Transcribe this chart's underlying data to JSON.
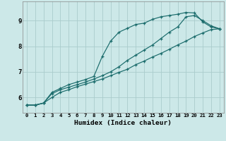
{
  "xlabel": "Humidex (Indice chaleur)",
  "background_color": "#cce8e8",
  "grid_color": "#aacccc",
  "line_color": "#1a6b6b",
  "xlim": [
    -0.5,
    23.5
  ],
  "ylim": [
    5.4,
    9.75
  ],
  "xticks": [
    0,
    1,
    2,
    3,
    4,
    5,
    6,
    7,
    8,
    9,
    10,
    11,
    12,
    13,
    14,
    15,
    16,
    17,
    18,
    19,
    20,
    21,
    22,
    23
  ],
  "yticks": [
    6,
    7,
    8,
    9
  ],
  "series": [
    [
      5.7,
      5.7,
      5.78,
      6.2,
      6.35,
      6.5,
      6.6,
      6.7,
      6.82,
      7.6,
      8.2,
      8.55,
      8.7,
      8.85,
      8.9,
      9.05,
      9.15,
      9.2,
      9.25,
      9.32,
      9.3,
      8.95,
      8.75,
      8.68
    ],
    [
      5.7,
      5.7,
      5.78,
      6.15,
      6.3,
      6.4,
      6.5,
      6.6,
      6.72,
      6.85,
      7.0,
      7.2,
      7.45,
      7.65,
      7.85,
      8.05,
      8.3,
      8.55,
      8.75,
      9.15,
      9.2,
      9.0,
      8.8,
      8.68
    ],
    [
      5.7,
      5.7,
      5.78,
      6.0,
      6.2,
      6.3,
      6.42,
      6.52,
      6.62,
      6.72,
      6.85,
      6.98,
      7.1,
      7.28,
      7.42,
      7.58,
      7.72,
      7.88,
      8.05,
      8.2,
      8.38,
      8.52,
      8.65,
      8.68
    ]
  ]
}
